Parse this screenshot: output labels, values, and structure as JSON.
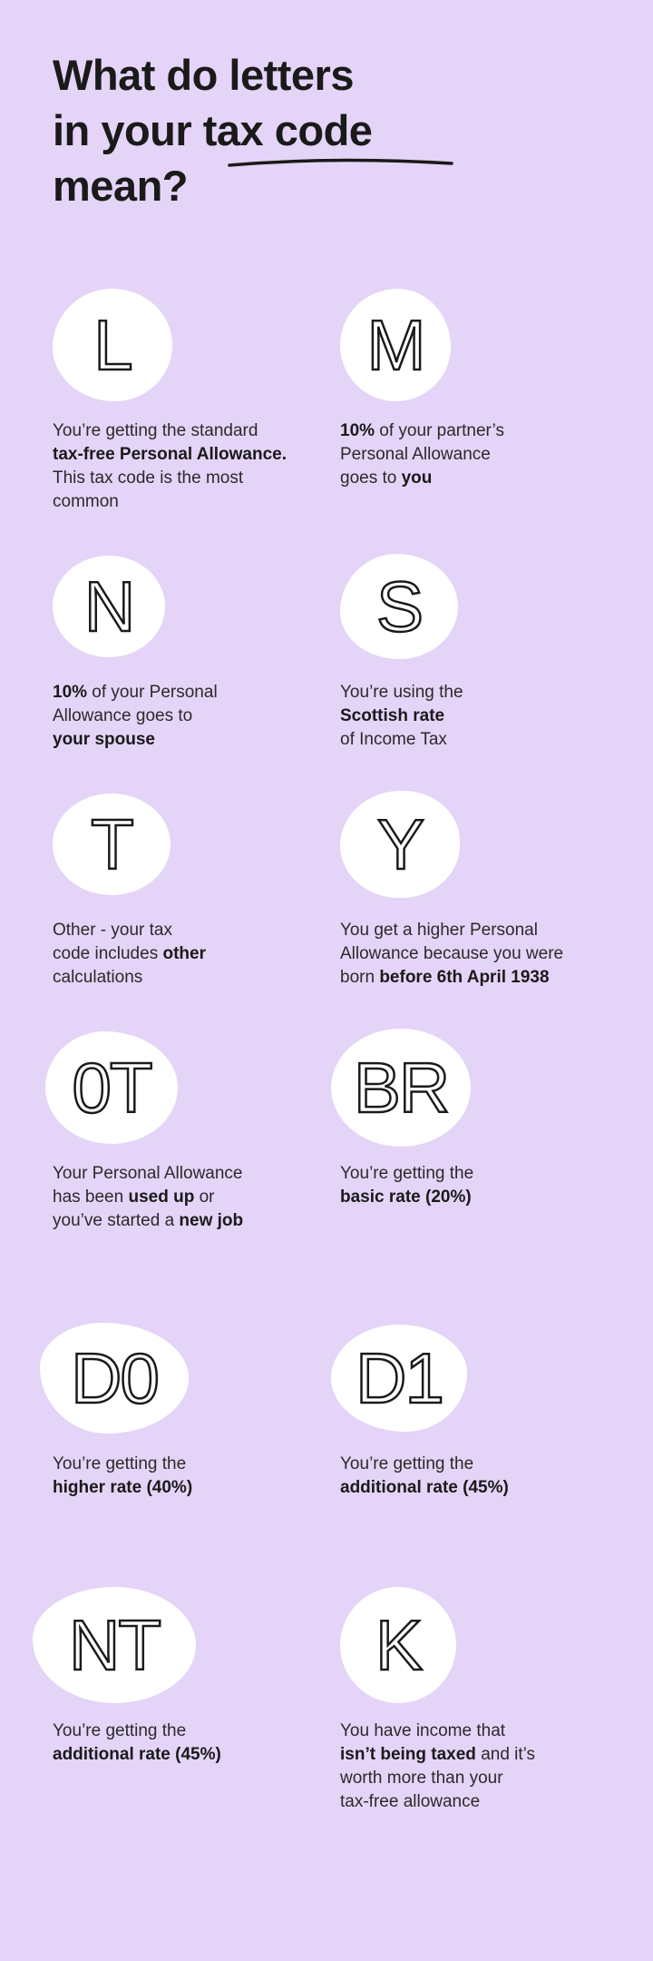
{
  "title": {
    "lines": [
      "What do letters",
      "in your tax code",
      "mean?"
    ],
    "underlined": "tax code"
  },
  "background_color": "#e4d4f7",
  "codes": [
    {
      "code": "L",
      "lines": [
        [
          {
            "t": "You’re getting the standard",
            "b": false
          }
        ],
        [
          {
            "t": "tax-free Personal Allowance.",
            "b": true
          }
        ],
        [
          {
            "t": "This tax code is the most",
            "b": false
          }
        ],
        [
          {
            "t": "common",
            "b": false
          }
        ]
      ]
    },
    {
      "code": "M",
      "lines": [
        [
          {
            "t": "10%",
            "b": true
          },
          {
            "t": " of your partner’s",
            "b": false
          }
        ],
        [
          {
            "t": "Personal Allowance",
            "b": false
          }
        ],
        [
          {
            "t": "goes to ",
            "b": false
          },
          {
            "t": "you",
            "b": true
          }
        ]
      ]
    },
    {
      "code": "N",
      "lines": [
        [
          {
            "t": "10%",
            "b": true
          },
          {
            "t": " of your Personal",
            "b": false
          }
        ],
        [
          {
            "t": "Allowance goes to",
            "b": false
          }
        ],
        [
          {
            "t": "your spouse",
            "b": true
          }
        ]
      ]
    },
    {
      "code": "S",
      "lines": [
        [
          {
            "t": "You’re using the",
            "b": false
          }
        ],
        [
          {
            "t": "Scottish rate",
            "b": true
          }
        ],
        [
          {
            "t": "of Income Tax",
            "b": false
          }
        ]
      ]
    },
    {
      "code": "T",
      "lines": [
        [
          {
            "t": "Other - your tax",
            "b": false
          }
        ],
        [
          {
            "t": "code includes ",
            "b": false
          },
          {
            "t": "other",
            "b": true
          }
        ],
        [
          {
            "t": "calculations",
            "b": false
          }
        ]
      ]
    },
    {
      "code": "Y",
      "lines": [
        [
          {
            "t": "You get a higher Personal",
            "b": false
          }
        ],
        [
          {
            "t": "Allowance because you were",
            "b": false
          }
        ],
        [
          {
            "t": "born ",
            "b": false
          },
          {
            "t": "before 6th April 1938",
            "b": true
          }
        ]
      ]
    },
    {
      "code": "0T",
      "lines": [
        [
          {
            "t": "Your Personal Allowance",
            "b": false
          }
        ],
        [
          {
            "t": "has been ",
            "b": false
          },
          {
            "t": "used up",
            "b": true
          },
          {
            "t": " or",
            "b": false
          }
        ],
        [
          {
            "t": "you’ve started a ",
            "b": false
          },
          {
            "t": "new job",
            "b": true
          }
        ]
      ]
    },
    {
      "code": "BR",
      "lines": [
        [
          {
            "t": "You’re getting the",
            "b": false
          }
        ],
        [
          {
            "t": "basic rate (20%)",
            "b": true
          }
        ]
      ]
    },
    {
      "code": "D0",
      "lines": [
        [
          {
            "t": "You’re getting the",
            "b": false
          }
        ],
        [
          {
            "t": "higher rate (40%)",
            "b": true
          }
        ]
      ]
    },
    {
      "code": "D1",
      "lines": [
        [
          {
            "t": "You’re getting the",
            "b": false
          }
        ],
        [
          {
            "t": "additional rate (45%)",
            "b": true
          }
        ]
      ]
    },
    {
      "code": "NT",
      "lines": [
        [
          {
            "t": "You’re getting the",
            "b": false
          }
        ],
        [
          {
            "t": "additional rate (45%)",
            "b": true
          }
        ]
      ]
    },
    {
      "code": "K",
      "lines": [
        [
          {
            "t": "You have income that",
            "b": false
          }
        ],
        [
          {
            "t": "isn’t being taxed",
            "b": true
          },
          {
            "t": " and it’s",
            "b": false
          }
        ],
        [
          {
            "t": "worth more than your",
            "b": false
          }
        ],
        [
          {
            "t": "tax-free allowance",
            "b": false
          }
        ]
      ]
    }
  ]
}
